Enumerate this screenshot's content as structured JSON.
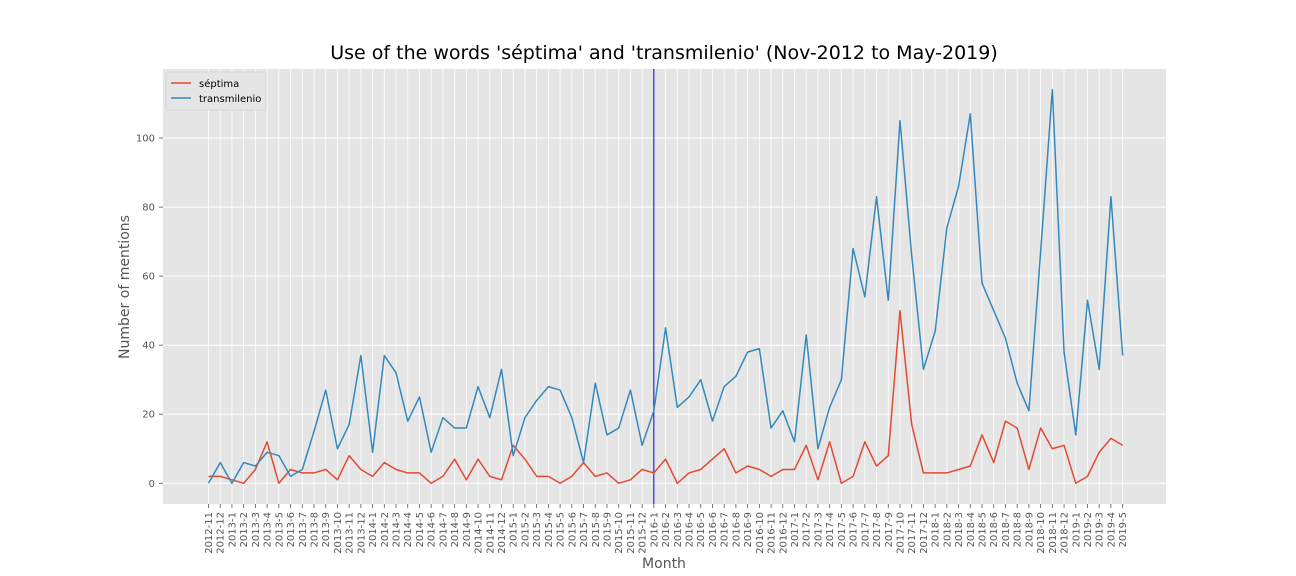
{
  "chart_data": {
    "type": "line",
    "title": "Use of the words 'séptima' and 'transmilenio' (Nov-2012 to May-2019)",
    "xlabel": "Month",
    "ylabel": "Number of mentions",
    "yticks": [
      0,
      20,
      40,
      60,
      80,
      100
    ],
    "ylim": [
      -6,
      120
    ],
    "grid": true,
    "legend_position": "top-left",
    "vline_category": "2016-1",
    "vline_color": "#0000cc",
    "categories": [
      "2012-11",
      "2012-12",
      "2013-1",
      "2013-2",
      "2013-3",
      "2013-4",
      "2013-5",
      "2013-6",
      "2013-7",
      "2013-8",
      "2013-9",
      "2013-10",
      "2013-11",
      "2013-12",
      "2014-1",
      "2014-2",
      "2014-3",
      "2014-4",
      "2014-5",
      "2014-6",
      "2014-7",
      "2014-8",
      "2014-9",
      "2014-10",
      "2014-11",
      "2014-12",
      "2015-1",
      "2015-2",
      "2015-3",
      "2015-4",
      "2015-5",
      "2015-6",
      "2015-7",
      "2015-8",
      "2015-9",
      "2015-10",
      "2015-11",
      "2015-12",
      "2016-1",
      "2016-2",
      "2016-3",
      "2016-4",
      "2016-5",
      "2016-6",
      "2016-7",
      "2016-8",
      "2016-9",
      "2016-10",
      "2016-11",
      "2016-12",
      "2017-1",
      "2017-2",
      "2017-3",
      "2017-4",
      "2017-5",
      "2017-6",
      "2017-7",
      "2017-8",
      "2017-9",
      "2017-10",
      "2017-11",
      "2017-12",
      "2018-1",
      "2018-2",
      "2018-3",
      "2018-4",
      "2018-5",
      "2018-6",
      "2018-7",
      "2018-8",
      "2018-9",
      "2018-10",
      "2018-11",
      "2018-12",
      "2019-1",
      "2019-2",
      "2019-3",
      "2019-4",
      "2019-5"
    ],
    "series": [
      {
        "name": "séptima",
        "color": "#e24a33",
        "values": [
          2,
          2,
          1,
          0,
          4,
          12,
          0,
          4,
          3,
          3,
          4,
          1,
          8,
          4,
          2,
          6,
          4,
          3,
          3,
          0,
          2,
          7,
          1,
          7,
          2,
          1,
          11,
          7,
          2,
          2,
          0,
          2,
          6,
          2,
          3,
          0,
          1,
          4,
          3,
          7,
          0,
          3,
          4,
          7,
          10,
          3,
          5,
          4,
          2,
          4,
          4,
          11,
          1,
          12,
          0,
          2,
          12,
          5,
          8,
          50,
          17,
          3,
          3,
          3,
          4,
          5,
          14,
          6,
          18,
          16,
          4,
          16,
          10,
          11,
          0,
          2,
          9,
          13,
          11
        ]
      },
      {
        "name": "transmilenio",
        "color": "#348abd",
        "values": [
          0,
          6,
          0,
          6,
          5,
          9,
          8,
          2,
          4,
          15,
          27,
          10,
          17,
          37,
          9,
          37,
          32,
          18,
          25,
          9,
          19,
          16,
          16,
          28,
          19,
          33,
          8,
          19,
          24,
          28,
          27,
          19,
          6,
          29,
          14,
          16,
          27,
          11,
          21,
          45,
          22,
          25,
          30,
          18,
          28,
          31,
          38,
          39,
          16,
          21,
          12,
          43,
          10,
          22,
          30,
          68,
          54,
          83,
          53,
          105,
          66,
          33,
          44,
          74,
          86,
          107,
          58,
          50,
          42,
          29,
          21,
          67,
          114,
          38,
          14,
          53,
          33,
          83,
          37
        ]
      }
    ]
  }
}
